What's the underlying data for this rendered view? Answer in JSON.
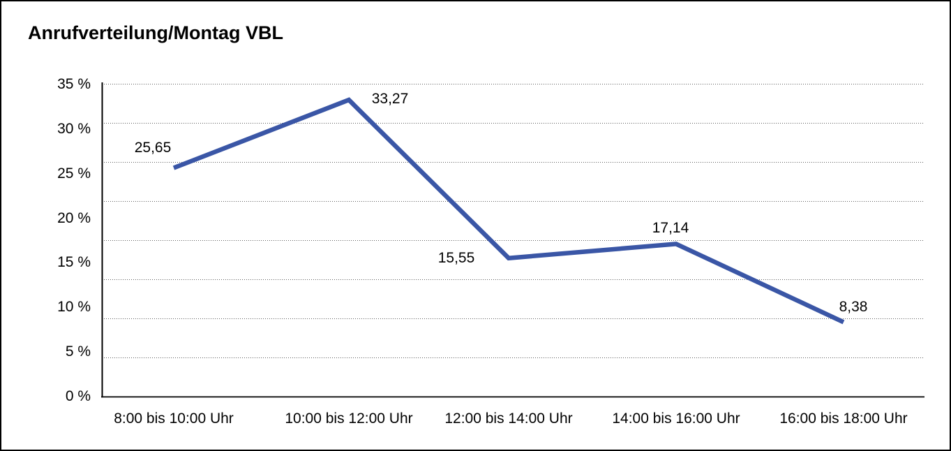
{
  "title": "Anrufverteilung/Montag VBL",
  "line_color": "#3A56A6",
  "text_color": "#000000",
  "gridline_color": "#5a5a5a",
  "axis_color": "#000000",
  "chart_data": {
    "type": "line",
    "title": "Anrufverteilung/Montag VBL",
    "categories": [
      "8:00 bis 10:00 Uhr",
      "10:00 bis 12:00 Uhr",
      "12:00 bis 14:00 Uhr",
      "14:00 bis 16:00 Uhr",
      "16:00 bis 18:00 Uhr"
    ],
    "values": [
      25.65,
      33.27,
      15.55,
      17.14,
      8.38
    ],
    "value_labels": [
      "25,65",
      "33,27",
      "15,55",
      "17,14",
      "8,38"
    ],
    "y_tick_labels": [
      "35 %",
      "30 %",
      "25 %",
      "20 %",
      "15 %",
      "10 %",
      "5 %",
      "0 %"
    ],
    "xlabel": "",
    "ylabel": "",
    "ylim": [
      0,
      35
    ],
    "y_tick_step": 5,
    "grid": "horizontal-dotted",
    "legend": "none",
    "series_name": "Anrufverteilung Montag VBL"
  }
}
